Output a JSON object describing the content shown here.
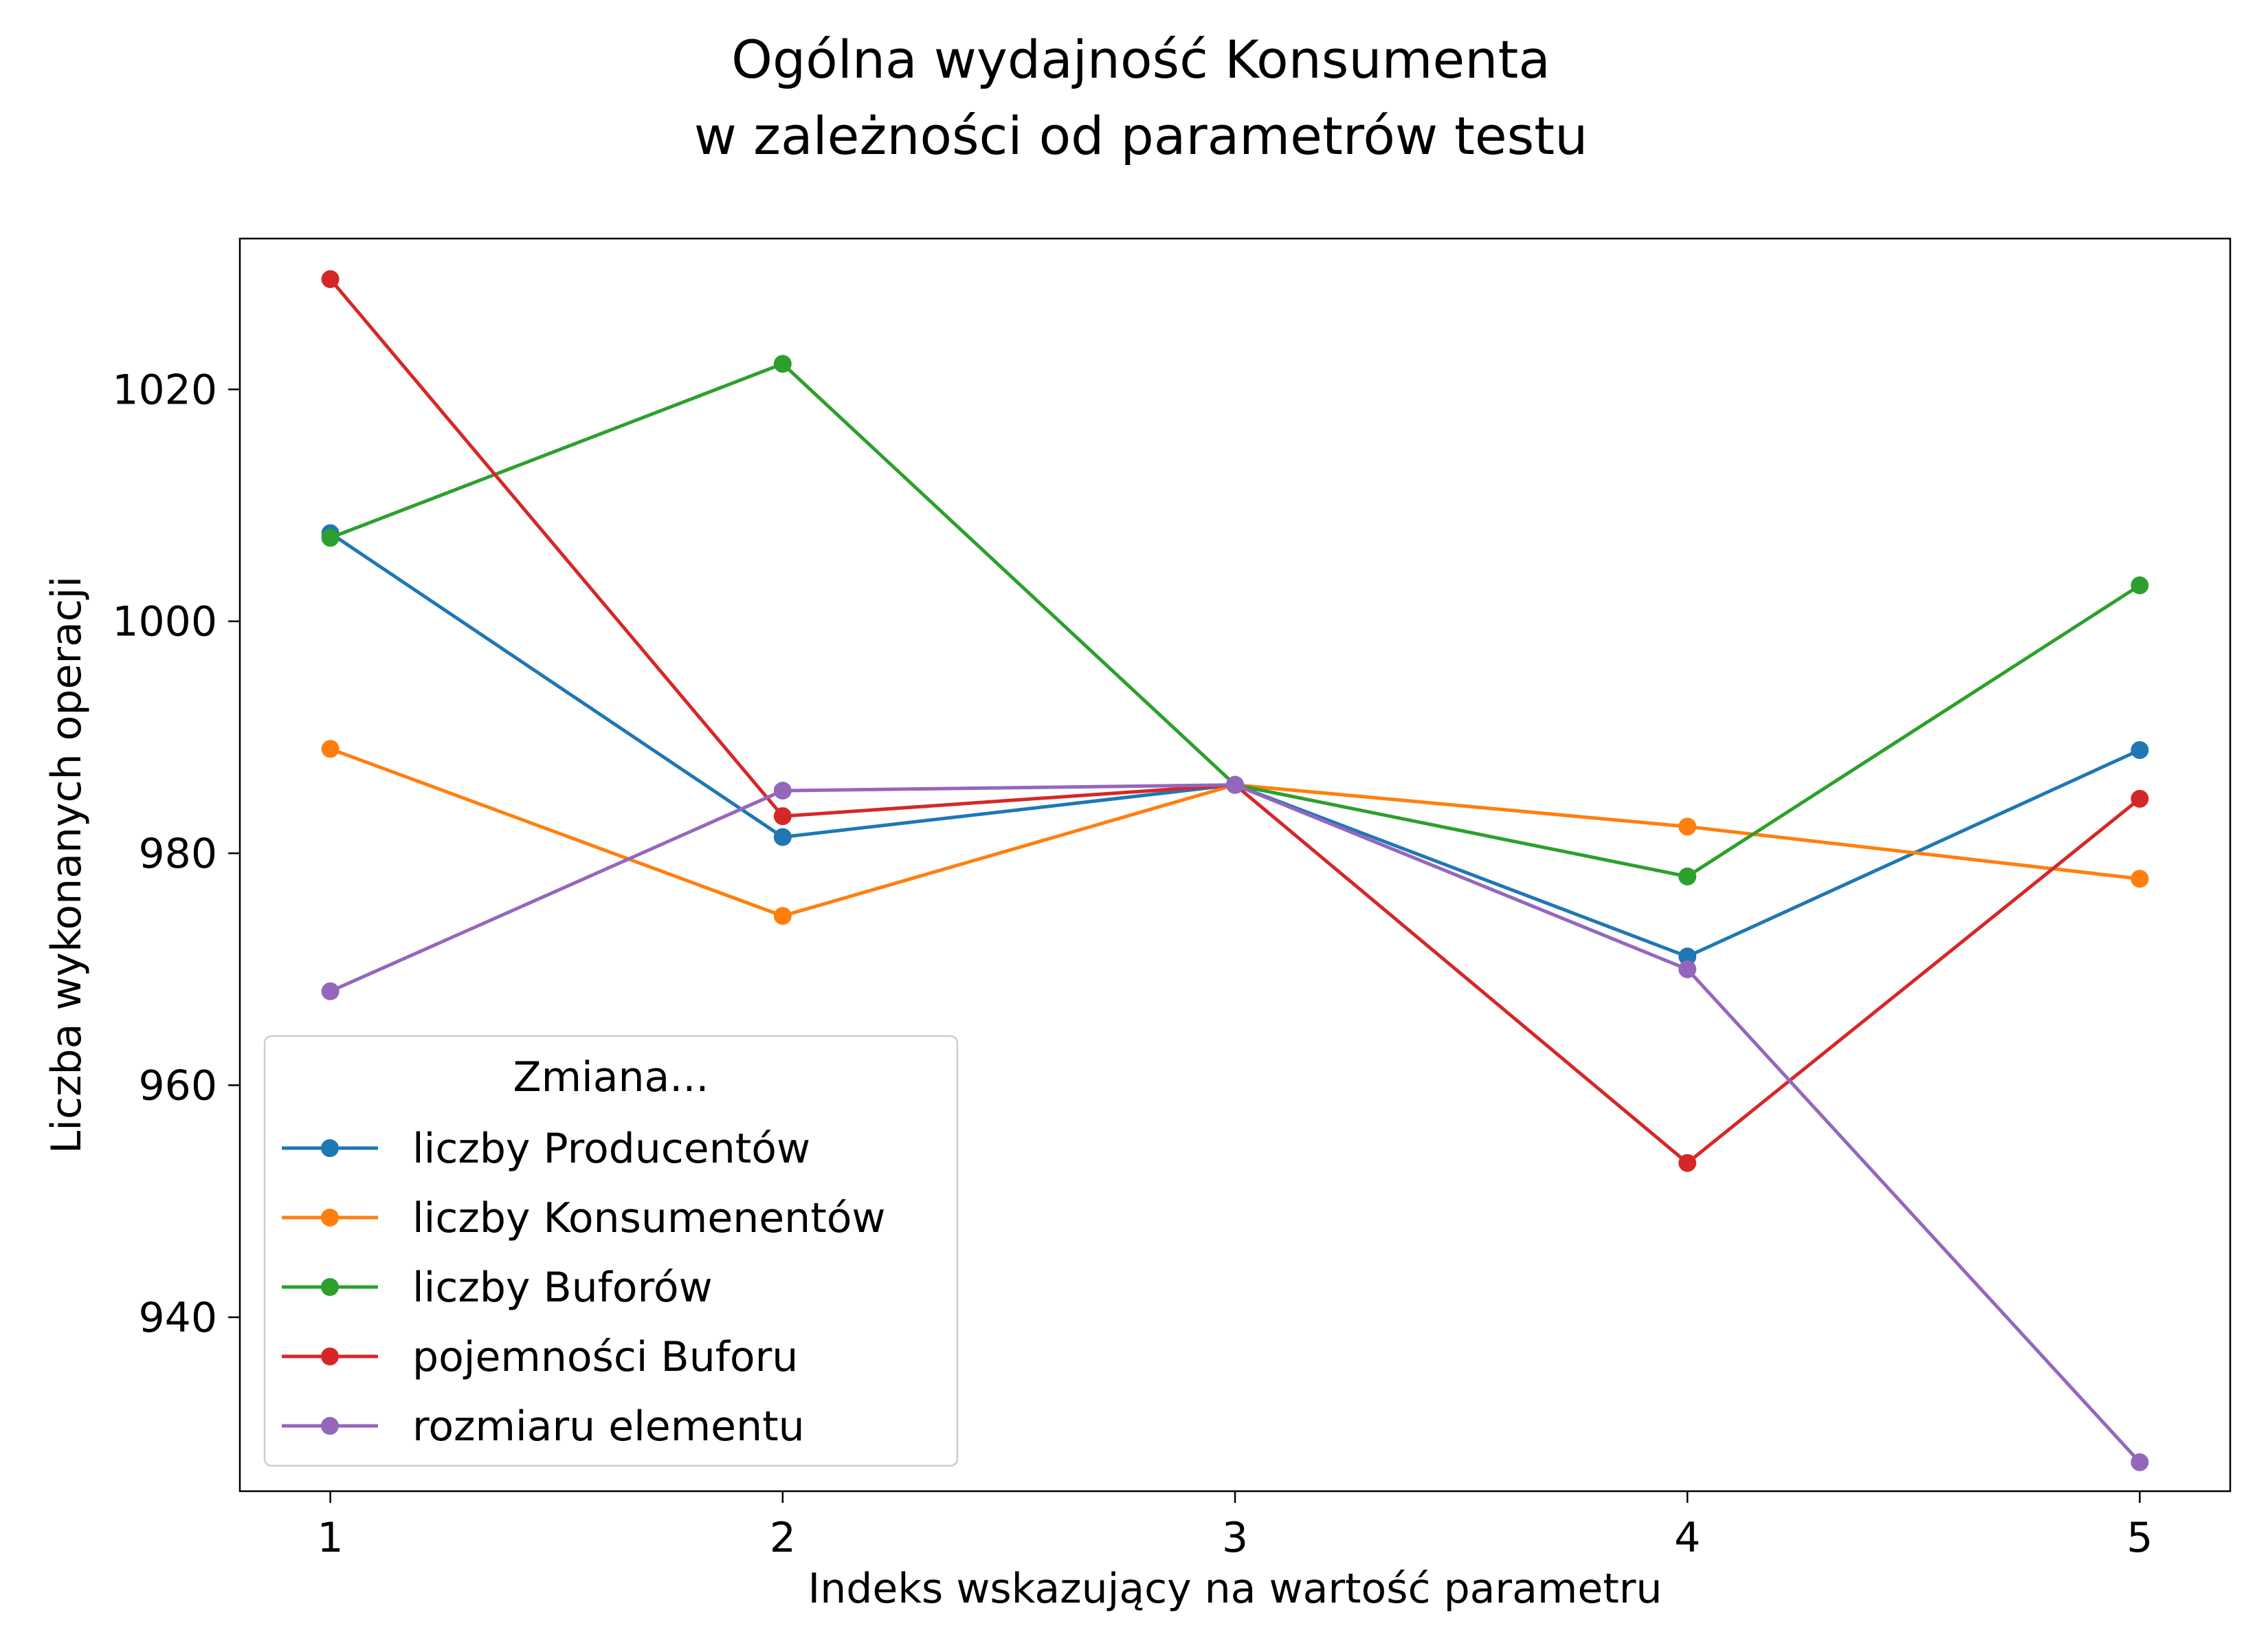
{
  "chart_data": {
    "type": "line",
    "title_line1": "Ogólna wydajność Konsumenta",
    "title_line2": "w zależności od parametrów testu",
    "xlabel": "Indeks wskazujący na wartość parametru",
    "ylabel": "Liczba wykonanych operacji",
    "x": [
      1,
      2,
      3,
      4,
      5
    ],
    "xlim": [
      0.8,
      5.2
    ],
    "ylim": [
      925,
      1033
    ],
    "xticks": [
      1,
      2,
      3,
      4,
      5
    ],
    "yticks": [
      940,
      960,
      980,
      1000,
      1020
    ],
    "grid": false,
    "legend_title": "Zmiana...",
    "legend_position": "lower-left",
    "series": [
      {
        "name": "liczby Producentów",
        "color": "#1f77b4",
        "values": [
          1007.6,
          981.4,
          985.9,
          971.1,
          988.9
        ]
      },
      {
        "name": "liczby Konsumenentów",
        "color": "#ff7f0e",
        "values": [
          989.0,
          974.6,
          985.9,
          982.3,
          977.8
        ]
      },
      {
        "name": "liczby Buforów",
        "color": "#2ca02c",
        "values": [
          1007.2,
          1022.2,
          985.9,
          978.0,
          1003.1
        ]
      },
      {
        "name": "pojemności Buforu",
        "color": "#d62728",
        "values": [
          1029.5,
          983.2,
          985.9,
          953.3,
          984.7
        ]
      },
      {
        "name": "rozmiaru elementu",
        "color": "#9467bd",
        "values": [
          968.1,
          985.4,
          985.9,
          970.0,
          927.5
        ]
      }
    ]
  }
}
